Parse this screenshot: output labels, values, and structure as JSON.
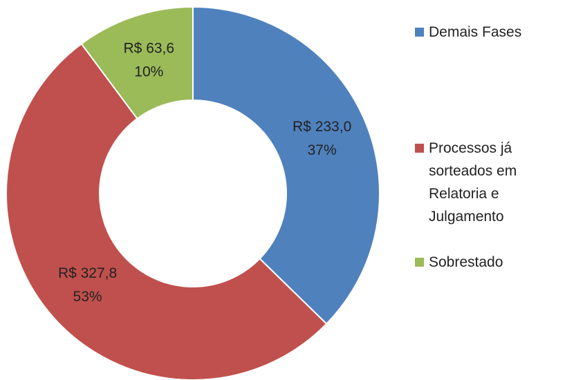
{
  "chart_data": {
    "type": "donut",
    "categories": [
      "Demais Fases",
      "Processos já sorteados em Relatoria e Julgamento",
      "Sobrestado"
    ],
    "values": [
      233.0,
      327.8,
      63.6
    ],
    "value_labels": [
      "R$ 233,0",
      "R$ 327,8",
      "R$ 63,6"
    ],
    "percent_labels": [
      "37%",
      "53%",
      "10%"
    ],
    "colors": [
      "#4f81bd",
      "#c0504d",
      "#9bbb59"
    ],
    "legend": "right"
  }
}
